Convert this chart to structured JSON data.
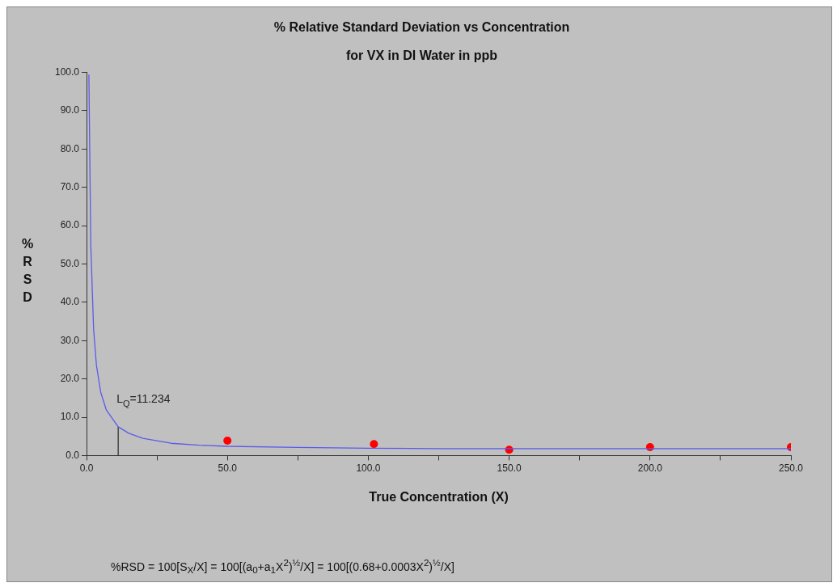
{
  "chart_data": {
    "type": "line",
    "title": "% Relative Standard Deviation vs Concentration",
    "subtitle": "for VX in DI Water in ppb",
    "xlabel": "True Concentration (X)",
    "ylabel": "%RSD",
    "series": [
      {
        "color": "#5a5aee",
        "marker": "none",
        "x": [
          0.83,
          1.5,
          2.5,
          3.5,
          5,
          7,
          11.234,
          15,
          20,
          30,
          40,
          50,
          75,
          100,
          125,
          175,
          225,
          250
        ],
        "values": [
          99.4,
          55.0,
          33.0,
          23.6,
          16.6,
          11.9,
          7.5,
          5.8,
          4.5,
          3.2,
          2.7,
          2.4,
          2.1,
          1.9,
          1.8,
          1.8,
          1.8,
          1.8
        ]
      },
      {
        "type": "scatter",
        "color": "#ff0000",
        "marker": "circle",
        "x": [
          50,
          102,
          150,
          200,
          250
        ],
        "values": [
          3.9,
          3.0,
          1.5,
          2.2,
          2.2
        ]
      },
      {
        "type": "line",
        "color": "#333333",
        "marker": "none",
        "x": [
          11.234,
          11.234
        ],
        "values": [
          0,
          7.5
        ]
      }
    ],
    "xlim": [
      0,
      250
    ],
    "xticks": [
      {
        "value": 0,
        "label": "0.0"
      },
      {
        "value": 25,
        "label": null
      },
      {
        "value": 50,
        "label": "50.0"
      },
      {
        "value": 75,
        "label": null
      },
      {
        "value": 100,
        "label": "100.0"
      },
      {
        "value": 125,
        "label": null
      },
      {
        "value": 150,
        "label": "150.0"
      },
      {
        "value": 175,
        "label": null
      },
      {
        "value": 200,
        "label": "200.0"
      },
      {
        "value": 225,
        "label": null
      },
      {
        "value": 250,
        "label": "250.0"
      }
    ],
    "ylim": [
      0,
      100
    ],
    "yticks": [
      {
        "value": 0,
        "label": "0.0"
      },
      {
        "value": 10,
        "label": "10.0"
      },
      {
        "value": 20,
        "label": "20.0"
      },
      {
        "value": 30,
        "label": "30.0"
      },
      {
        "value": 40,
        "label": "40.0"
      },
      {
        "value": 50,
        "label": "50.0"
      },
      {
        "value": 60,
        "label": "60.0"
      },
      {
        "value": 70,
        "label": "70.0"
      },
      {
        "value": 80,
        "label": "80.0"
      },
      {
        "value": 90,
        "label": "90.0"
      },
      {
        "value": 100,
        "label": "100.0"
      }
    ],
    "grid": false,
    "legend": false,
    "annotations": [
      {
        "text": "L$_{Q}$=11.234",
        "x": 11.234,
        "y": 7.5
      },
      "%RSD = 100[S$_{X}$/X] = 100[(a$_{0}$+a$_{1}$X$^{2}$)$^{½}$/X] = 100[(0.68+0.0003X$^{2}$)$^{½}$/X]"
    ]
  }
}
